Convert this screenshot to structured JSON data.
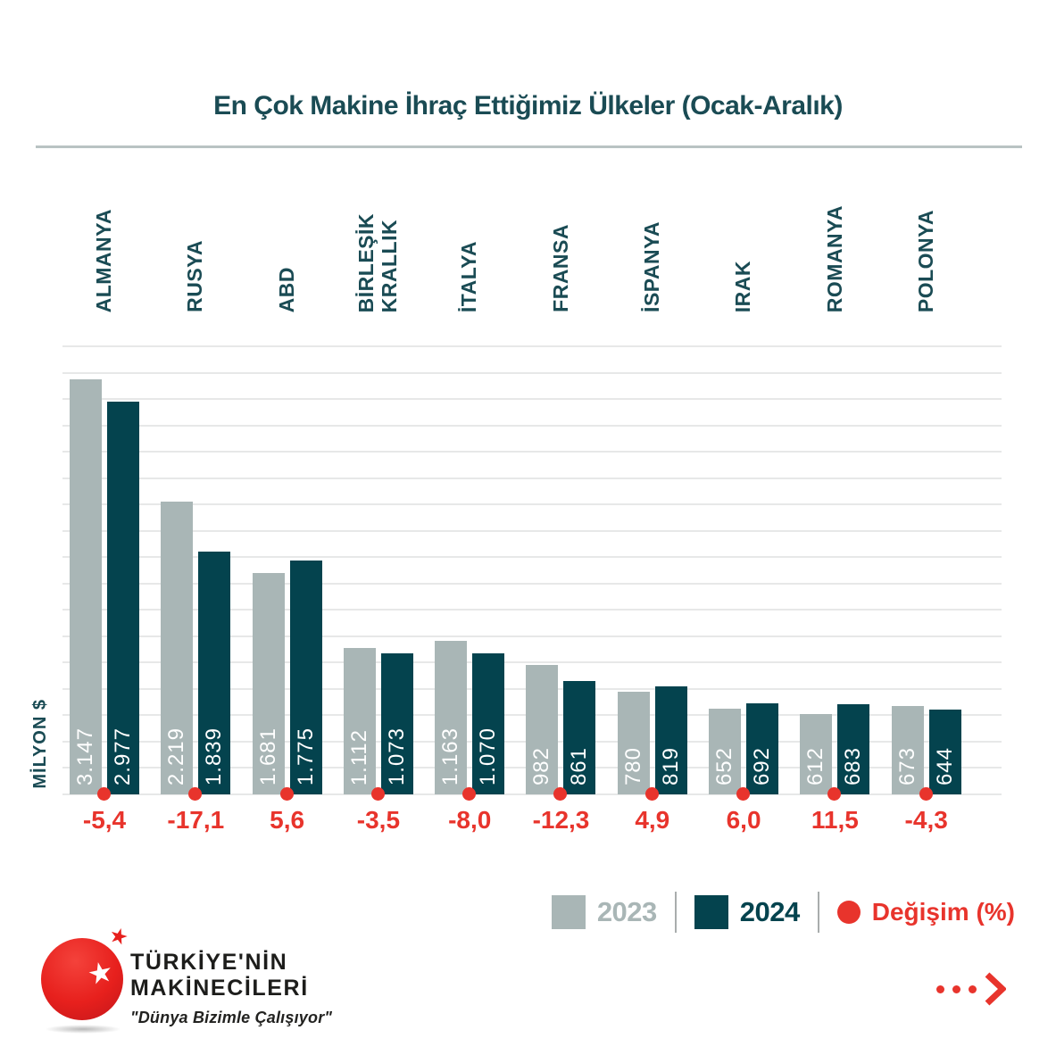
{
  "title": "En Çok Makine İhraç Ettiğimiz Ülkeler (Ocak-Aralık)",
  "y_axis_label": "MİLYON $",
  "chart_data": {
    "type": "bar",
    "title": "En Çok Makine İhraç Ettiğimiz Ülkeler (Ocak-Aralık)",
    "ylabel": "MİLYON $",
    "ylim": [
      0,
      3400
    ],
    "grid_step": 200,
    "grid": true,
    "legend_position": "bottom-right",
    "categories": [
      "ALMANYA",
      "RUSYA",
      "ABD",
      "BİRLEŞİK KRALLIK",
      "İTALYA",
      "FRANSA",
      "İSPANYA",
      "IRAK",
      "ROMANYA",
      "POLONYA"
    ],
    "categories_display": [
      "ALMANYA",
      "RUSYA",
      "ABD",
      "BİRLEŞİK\nKRALLIK",
      "İTALYA",
      "FRANSA",
      "İSPANYA",
      "IRAK",
      "ROMANYA",
      "POLONYA"
    ],
    "series": [
      {
        "name": "2023",
        "values": [
          3147,
          2219,
          1681,
          1112,
          1163,
          982,
          780,
          652,
          612,
          673
        ]
      },
      {
        "name": "2024",
        "values": [
          2977,
          1839,
          1775,
          1073,
          1070,
          861,
          819,
          692,
          683,
          644
        ]
      }
    ],
    "value_labels_2023": [
      "3.147",
      "2.219",
      "1.681",
      "1.112",
      "1.163",
      "982",
      "780",
      "652",
      "612",
      "673"
    ],
    "value_labels_2024": [
      "2.977",
      "1.839",
      "1.775",
      "1.073",
      "1.070",
      "861",
      "819",
      "692",
      "683",
      "644"
    ],
    "change_pct": [
      -5.4,
      -17.1,
      5.6,
      -3.5,
      -8.0,
      -12.3,
      4.9,
      6.0,
      11.5,
      -4.3
    ],
    "change_labels": [
      "-5,4",
      "-17,1",
      "5,6",
      "-3,5",
      "-8,0",
      "-12,3",
      "4,9",
      "6,0",
      "11,5",
      "-4,3"
    ]
  },
  "legend": {
    "item_2023": "2023",
    "item_2024": "2024",
    "item_change": "Değişim (%)"
  },
  "logo": {
    "line1": "TÜRKİYE'NİN",
    "line2": "MAKİNECİLERİ",
    "slogan": "\"Dünya Bizimle Çalışıyor\""
  },
  "colors": {
    "bar_2023": "#a9b6b6",
    "bar_2024": "#04434e",
    "accent_red": "#e8342c",
    "teal_text": "#1a4b54",
    "gridline": "#e7e8e8"
  }
}
